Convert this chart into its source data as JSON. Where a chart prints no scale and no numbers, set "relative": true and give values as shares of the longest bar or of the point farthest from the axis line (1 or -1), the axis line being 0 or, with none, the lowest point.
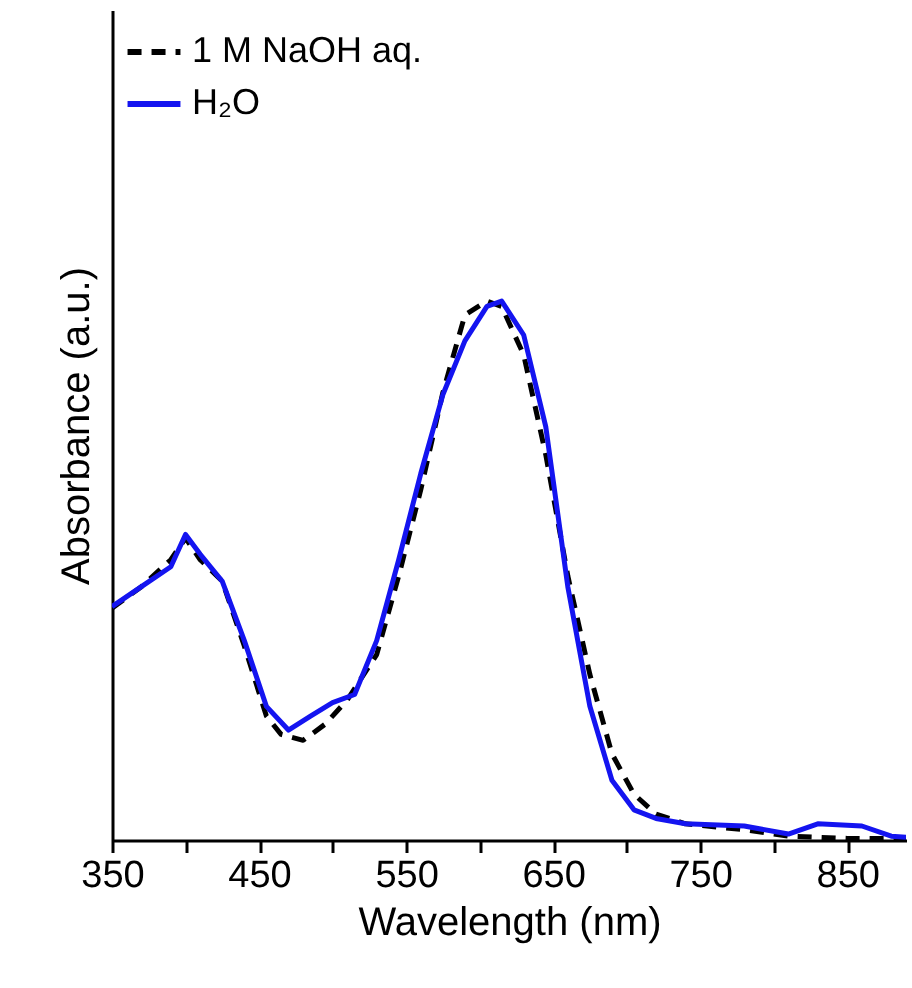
{
  "chart_data": {
    "type": "line",
    "xlabel": "Wavelength (nm)",
    "ylabel": "Absorbance (a.u.)",
    "relative": true,
    "xlim": [
      350,
      890
    ],
    "xticks": [
      350,
      {
        "value": 400,
        "label": null
      },
      450,
      {
        "value": 500,
        "label": null
      },
      550,
      {
        "value": 600,
        "label": null
      },
      650,
      {
        "value": 700,
        "label": null
      },
      750,
      {
        "value": 800,
        "label": null
      },
      850
    ],
    "grid": false,
    "legend": "top left",
    "tick_labels": "x",
    "series": [
      {
        "name": "1 M NaOH aq.",
        "color": "#000000",
        "line_style": "dashed",
        "x": [
          350,
          370,
          390,
          400,
          410,
          425,
          440,
          455,
          465,
          480,
          495,
          510,
          530,
          545,
          560,
          575,
          590,
          605,
          615,
          630,
          645,
          660,
          675,
          690,
          705,
          720,
          740,
          780,
          810,
          850,
          890
        ],
        "values": [
          0.43,
          0.47,
          0.52,
          0.56,
          0.52,
          0.48,
          0.36,
          0.23,
          0.196,
          0.185,
          0.215,
          0.26,
          0.344,
          0.49,
          0.65,
          0.83,
          0.974,
          1.0,
          0.99,
          0.9,
          0.715,
          0.49,
          0.307,
          0.16,
          0.085,
          0.048,
          0.03,
          0.019,
          0.007,
          0.003,
          0.003
        ]
      },
      {
        "name": "H₂O",
        "color": "#1414f0",
        "line_style": "solid",
        "x": [
          350,
          370,
          390,
          400,
          410,
          425,
          440,
          455,
          470,
          485,
          500,
          515,
          530,
          545,
          560,
          575,
          590,
          605,
          615,
          630,
          645,
          660,
          675,
          690,
          705,
          720,
          740,
          780,
          810,
          830,
          860,
          880,
          890
        ],
        "values": [
          0.433,
          0.47,
          0.507,
          0.567,
          0.53,
          0.48,
          0.37,
          0.248,
          0.204,
          0.23,
          0.255,
          0.27,
          0.37,
          0.52,
          0.68,
          0.826,
          0.926,
          0.99,
          1.0,
          0.937,
          0.767,
          0.47,
          0.248,
          0.111,
          0.056,
          0.04,
          0.03,
          0.026,
          0.011,
          0.03,
          0.026,
          0.007,
          0.005
        ]
      }
    ]
  }
}
